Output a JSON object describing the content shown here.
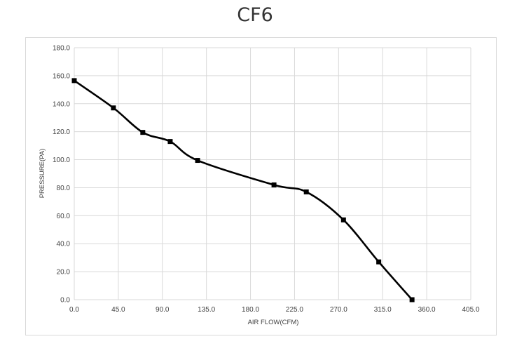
{
  "chart_data": {
    "type": "line",
    "title": "CF6",
    "xlabel": "AIR FLOW(CFM)",
    "ylabel": "PRESSURE(PA)",
    "xlim": [
      0,
      405
    ],
    "ylim": [
      0,
      180
    ],
    "x_ticks": [
      "0.0",
      "45.0",
      "90.0",
      "135.0",
      "180.0",
      "225.0",
      "270.0",
      "315.0",
      "360.0",
      "405.0"
    ],
    "y_ticks": [
      "0.0",
      "20.0",
      "40.0",
      "60.0",
      "80.0",
      "100.0",
      "120.0",
      "140.0",
      "160.0",
      "180.0"
    ],
    "grid": true,
    "legend": "none",
    "series": [
      {
        "x": [
          0,
          40,
          70,
          98,
          126,
          204,
          237,
          275,
          311,
          345
        ],
        "y": [
          156.5,
          137,
          119.5,
          113,
          99.5,
          82,
          77,
          57,
          27,
          0
        ],
        "color": "#000000",
        "marker": "square"
      }
    ],
    "colors": {
      "grid": "#d9d9d9",
      "line": "#000000",
      "text": "#404040"
    }
  }
}
